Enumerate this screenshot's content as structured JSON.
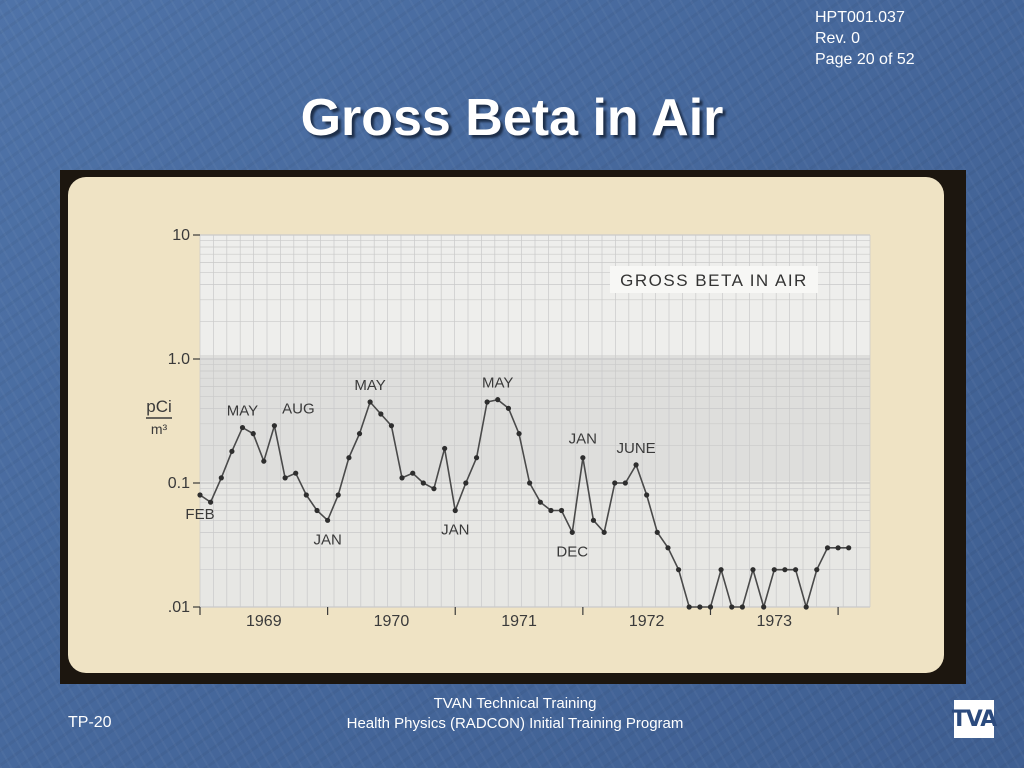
{
  "doc_info": {
    "code": "HPT001.037",
    "revision": "Rev. 0",
    "page": "Page 20 of 52"
  },
  "slide_title": "Gross Beta in Air",
  "footer": {
    "left": "TP-20",
    "line1": "TVAN Technical Training",
    "line2": "Health Physics (RADCON) Initial Training Program",
    "logo_text": "TVA"
  },
  "colors": {
    "background": "#46689c",
    "grid_line": "#c9c9c9",
    "data_line": "#4a4a4a",
    "card": "#efe3c4"
  },
  "chart_data": {
    "type": "line",
    "title": "GROSS BETA IN AIR",
    "ylabel_top": "pCi",
    "ylabel_bottom": "m³",
    "yscale": "log",
    "ylim": [
      0.01,
      10
    ],
    "yticks": [
      {
        "value": 10,
        "label": "10"
      },
      {
        "value": 1,
        "label": "1.0"
      },
      {
        "value": 0.1,
        "label": "0.1"
      },
      {
        "value": 0.01,
        "label": ".01"
      }
    ],
    "xlim": [
      1969,
      1974.25
    ],
    "xtick_labels": [
      {
        "value": 1969.5,
        "label": "1969"
      },
      {
        "value": 1970.5,
        "label": "1970"
      },
      {
        "value": 1971.5,
        "label": "1971"
      },
      {
        "value": 1972.5,
        "label": "1972"
      },
      {
        "value": 1973.5,
        "label": "1973"
      }
    ],
    "series": [
      {
        "x": [
          1969.0,
          1969.083,
          1969.167,
          1969.25,
          1969.333,
          1969.417,
          1969.5,
          1969.583,
          1969.667,
          1969.75,
          1969.833,
          1969.917,
          1970.0,
          1970.083,
          1970.167,
          1970.25,
          1970.333,
          1970.417,
          1970.5,
          1970.583,
          1970.667,
          1970.75,
          1970.833,
          1970.917,
          1971.0,
          1971.083,
          1971.167,
          1971.25,
          1971.333,
          1971.417,
          1971.5,
          1971.583,
          1971.667,
          1971.75,
          1971.833,
          1971.917,
          1972.0,
          1972.083,
          1972.167,
          1972.25,
          1972.333,
          1972.417,
          1972.5,
          1972.583,
          1972.667,
          1972.75,
          1972.833,
          1972.917,
          1973.0,
          1973.083,
          1973.167,
          1973.25,
          1973.333,
          1973.417,
          1973.5,
          1973.583,
          1973.667,
          1973.75,
          1973.833,
          1973.917,
          1974.0,
          1974.083
        ],
        "y": [
          0.08,
          0.07,
          0.11,
          0.18,
          0.28,
          0.25,
          0.15,
          0.29,
          0.11,
          0.12,
          0.08,
          0.06,
          0.05,
          0.08,
          0.16,
          0.25,
          0.45,
          0.36,
          0.29,
          0.11,
          0.12,
          0.1,
          0.09,
          0.19,
          0.06,
          0.1,
          0.16,
          0.45,
          0.47,
          0.4,
          0.25,
          0.1,
          0.07,
          0.06,
          0.06,
          0.04,
          0.16,
          0.05,
          0.04,
          0.1,
          0.1,
          0.14,
          0.08,
          0.04,
          0.03,
          0.02,
          0.01,
          0.01,
          0.01,
          0.02,
          0.01,
          0.01,
          0.02,
          0.01,
          0.02,
          0.02,
          0.02,
          0.01,
          0.02,
          0.03,
          0.03,
          0.03
        ]
      }
    ],
    "annotations": [
      {
        "text": "FEB",
        "x": 1969.0
      },
      {
        "text": "MAY",
        "x": 1969.333
      },
      {
        "text": "AUG",
        "x": 1969.583
      },
      {
        "text": "JAN",
        "x": 1970.0
      },
      {
        "text": "MAY",
        "x": 1970.333
      },
      {
        "text": "JAN",
        "x": 1971.0
      },
      {
        "text": "MAY",
        "x": 1971.333
      },
      {
        "text": "JAN",
        "x": 1972.0
      },
      {
        "text": "DEC",
        "x": 1971.917
      },
      {
        "text": "JUNE",
        "x": 1972.417
      }
    ]
  }
}
